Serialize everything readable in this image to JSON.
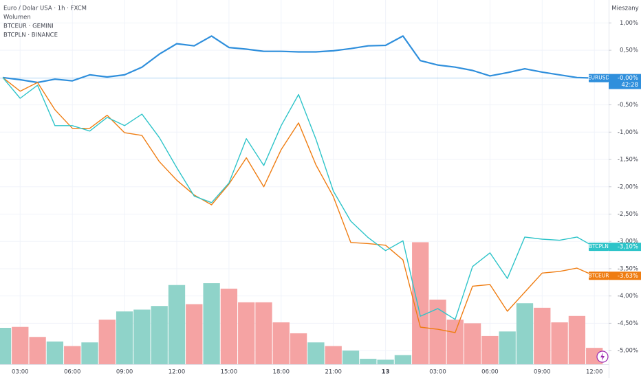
{
  "chart_data": {
    "type": "line",
    "title": "Euro / Dolar USA · 1h · FXCM",
    "legend_items": [
      "Wolumen",
      "BTCEUR · GEMINI",
      "BTCPLN · BINANCE"
    ],
    "scale_mode": "Mieszany",
    "countdown": "42:28",
    "categories": [
      null,
      "03:00",
      null,
      null,
      "06:00",
      null,
      null,
      "09:00",
      null,
      null,
      "12:00",
      null,
      null,
      "15:00",
      null,
      null,
      "18:00",
      null,
      null,
      "21:00",
      null,
      null,
      "13",
      null,
      null,
      "03:00",
      null,
      null,
      "06:00",
      null,
      null,
      "09:00",
      null,
      null,
      "12:00"
    ],
    "ylim": [
      -5.25,
      1.42
    ],
    "yticks": [
      {
        "value": 1,
        "label": "1,00%"
      },
      {
        "value": 0.5,
        "label": "0,50%"
      },
      {
        "value": -0.5,
        "label": "-0,50%"
      },
      {
        "value": -1,
        "label": "-1,00%"
      },
      {
        "value": -1.5,
        "label": "-1,50%"
      },
      {
        "value": -2,
        "label": "-2,00%"
      },
      {
        "value": -2.5,
        "label": "-2,50%"
      },
      {
        "value": -3,
        "label": "-3,00%"
      },
      {
        "value": -3.5,
        "label": "-3,50%"
      },
      {
        "value": -4,
        "label": "-4,00%"
      },
      {
        "value": -4.5,
        "label": "-4,50%"
      },
      {
        "value": -5,
        "label": "-5,00%"
      }
    ],
    "grid": true,
    "series": [
      {
        "name": "EURUSD",
        "color": "#2f8fdc",
        "last_label": "-0,00%",
        "values": [
          0,
          -0.04,
          -0.09,
          -0.03,
          -0.06,
          0.05,
          0.01,
          0.05,
          0.19,
          0.43,
          0.62,
          0.58,
          0.76,
          0.55,
          0.52,
          0.48,
          0.48,
          0.47,
          0.47,
          0.49,
          0.53,
          0.58,
          0.59,
          0.76,
          0.31,
          0.23,
          0.19,
          0.13,
          0.03,
          0.09,
          0.16,
          0.1,
          0.05,
          0.0,
          -0.01
        ]
      },
      {
        "name": "BTCEUR",
        "color": "#ef7d12",
        "last_label": "-3,63%",
        "values": [
          0,
          -0.25,
          -0.09,
          -0.59,
          -0.93,
          -0.93,
          -0.69,
          -1.01,
          -1.06,
          -1.54,
          -1.88,
          -2.15,
          -2.33,
          -1.95,
          -1.47,
          -2.0,
          -1.32,
          -0.83,
          -1.6,
          -2.18,
          -3.02,
          -3.04,
          -3.07,
          -3.34,
          -4.57,
          -4.61,
          -4.67,
          -3.82,
          -3.79,
          -4.28,
          -3.93,
          -3.58,
          -3.55,
          -3.49,
          -3.63
        ]
      },
      {
        "name": "BTCPLN",
        "color": "#2ec4c9",
        "last_label": "-3,10%",
        "values": [
          0,
          -0.38,
          -0.14,
          -0.88,
          -0.88,
          -0.98,
          -0.73,
          -0.88,
          -0.67,
          -1.1,
          -1.65,
          -2.17,
          -2.29,
          -1.93,
          -1.12,
          -1.61,
          -0.88,
          -0.31,
          -1.13,
          -2.08,
          -2.63,
          -2.93,
          -3.17,
          -2.99,
          -4.37,
          -4.23,
          -4.43,
          -3.46,
          -3.21,
          -3.68,
          -2.92,
          -2.96,
          -2.98,
          -2.92,
          -3.1
        ]
      }
    ],
    "volume": {
      "ylim": [
        0,
        400
      ],
      "values": [
        40,
        41,
        30,
        25,
        20,
        24,
        49,
        58,
        60,
        64,
        87,
        66,
        89,
        83,
        68,
        68,
        46,
        34,
        24,
        20,
        15,
        6,
        5,
        10,
        134,
        71,
        49,
        45,
        31,
        36,
        67,
        62,
        46,
        53,
        18
      ],
      "colors": [
        "#8fd3c9",
        "#f5a3a3",
        "#f5a3a3",
        "#8fd3c9",
        "#f5a3a3",
        "#8fd3c9",
        "#f5a3a3",
        "#8fd3c9",
        "#8fd3c9",
        "#8fd3c9",
        "#8fd3c9",
        "#f5a3a3",
        "#8fd3c9",
        "#f5a3a3",
        "#f5a3a3",
        "#f5a3a3",
        "#f5a3a3",
        "#f5a3a3",
        "#8fd3c9",
        "#f5a3a3",
        "#8fd3c9",
        "#8fd3c9",
        "#8fd3c9",
        "#8fd3c9",
        "#f5a3a3",
        "#f5a3a3",
        "#f5a3a3",
        "#f5a3a3",
        "#f5a3a3",
        "#8fd3c9",
        "#8fd3c9",
        "#f5a3a3",
        "#f5a3a3",
        "#f5a3a3",
        "#f5a3a3"
      ]
    }
  }
}
